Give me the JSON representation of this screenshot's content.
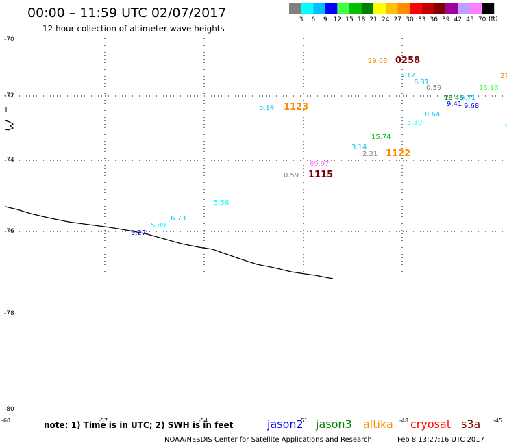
{
  "header": {
    "title": "00:00 – 11:59 UTC 02/07/2017",
    "subtitle": "12 hour collection of altimeter wave heights"
  },
  "legend": {
    "unit": "(ft)",
    "bins": [
      {
        "color": "#808080",
        "label": "3"
      },
      {
        "color": "#00ffff",
        "label": "6"
      },
      {
        "color": "#00bfff",
        "label": "9"
      },
      {
        "color": "#0000ff",
        "label": "12"
      },
      {
        "color": "#40ff40",
        "label": "15"
      },
      {
        "color": "#00c000",
        "label": "18"
      },
      {
        "color": "#008000",
        "label": "21"
      },
      {
        "color": "#ffff00",
        "label": "24"
      },
      {
        "color": "#ffc000",
        "label": "27"
      },
      {
        "color": "#ff8c00",
        "label": "30"
      },
      {
        "color": "#ff0000",
        "label": "33"
      },
      {
        "color": "#c00000",
        "label": "36"
      },
      {
        "color": "#800000",
        "label": "39"
      },
      {
        "color": "#a000a0",
        "label": "42"
      },
      {
        "color": "#c0a0ff",
        "label": "45"
      },
      {
        "color": "#ff80ff",
        "label": "70"
      },
      {
        "color": "#000000",
        "label": ""
      }
    ]
  },
  "axes": {
    "lat_labels": [
      "-70",
      "-72",
      "-74",
      "-76",
      "-78",
      "-80"
    ],
    "lon_labels": [
      "-60",
      "-57",
      "-54",
      "-51",
      "-48",
      "-45"
    ]
  },
  "observations": [
    {
      "text": "29.63",
      "color": "#ff8c00"
    },
    {
      "text": "0258",
      "color": "#800000",
      "time": true
    },
    {
      "text": "5.17",
      "color": "#00bfff"
    },
    {
      "text": "6.31",
      "color": "#00bfff"
    },
    {
      "text": "0.59",
      "color": "#808080"
    },
    {
      "text": "27",
      "color": "#ff8c00"
    },
    {
      "text": "13.13",
      "color": "#40ff40"
    },
    {
      "text": "18.46",
      "color": "#008000"
    },
    {
      "text": "9.71",
      "color": "#00bfff"
    },
    {
      "text": "9.41",
      "color": "#0000ff"
    },
    {
      "text": "9.68",
      "color": "#0000ff"
    },
    {
      "text": "8.64",
      "color": "#00bfff"
    },
    {
      "text": "5.30",
      "color": "#00ffff"
    },
    {
      "text": "6.14",
      "color": "#00bfff"
    },
    {
      "text": "1123",
      "color": "#ff8c00",
      "time": true
    },
    {
      "text": "15.74",
      "color": "#00c000"
    },
    {
      "text": "3.14",
      "color": "#00bfff"
    },
    {
      "text": "2.31",
      "color": "#808080"
    },
    {
      "text": "1122",
      "color": "#ff8c00",
      "time": true
    },
    {
      "text": "69.97",
      "color": "#ff80ff"
    },
    {
      "text": "0.59",
      "color": "#808080"
    },
    {
      "text": "1115",
      "color": "#800000",
      "time": true
    },
    {
      "text": "5.56",
      "color": "#00ffff"
    },
    {
      "text": "6.73",
      "color": "#00bfff"
    },
    {
      "text": "5.89",
      "color": "#00ffff"
    },
    {
      "text": "9.27",
      "color": "#0000ff"
    },
    {
      "text": "3",
      "color": "#00ffff"
    }
  ],
  "footer": {
    "note": "note: 1) Time is in UTC; 2) SWH is in feet",
    "satellites": [
      {
        "name": "jason2",
        "color": "#0000ff"
      },
      {
        "name": "jason3",
        "color": "#008000"
      },
      {
        "name": "altika",
        "color": "#ff8c00"
      },
      {
        "name": "cryosat",
        "color": "#ff0000"
      },
      {
        "name": "s3a",
        "color": "#800000"
      }
    ],
    "credit": "NOAA/NESDIS Center for Satellite Applications and Research",
    "timestamp": "Feb  8 13:27:16 UTC 2017"
  }
}
